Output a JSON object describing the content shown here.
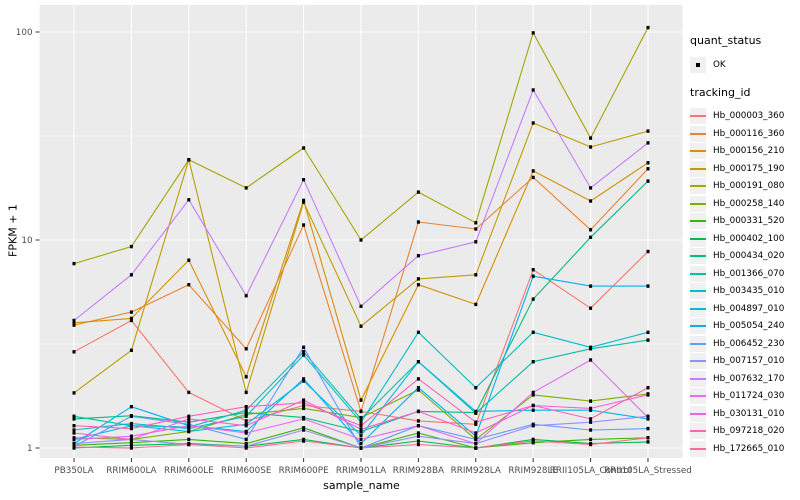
{
  "figure": {
    "background": "#FFFFFF",
    "panel_background": "#EBEBEB",
    "grid_color": "#FFFFFF",
    "axis_text_color": "#4D4D4D",
    "tick_color": "#333333",
    "point_color": "#000000",
    "legend_key_background": "#F0F0F0"
  },
  "axes": {
    "x": {
      "title": "sample_name"
    },
    "y": {
      "title": "FPKM + 1"
    }
  },
  "legend": {
    "quant_status": {
      "title": "quant_status",
      "items": [
        {
          "label": "OK",
          "marker": "black-square-point"
        }
      ]
    },
    "tracking_id": {
      "title": "tracking_id"
    }
  },
  "chart_data": {
    "type": "line",
    "title": "",
    "xlabel": "sample_name",
    "ylabel": "FPKM + 1",
    "y_scale": "log10",
    "ylim": [
      0.9,
      135
    ],
    "y_major_breaks": [
      1,
      10,
      100
    ],
    "y_tick_labels": [
      "1",
      "10",
      "100"
    ],
    "y_minor_breaks": [
      3.162,
      31.623
    ],
    "grid": true,
    "legend_position": "right",
    "marker": "small-black-square",
    "categories": [
      "PB350LA",
      "RRIM600LA",
      "RRIM600LE",
      "RRIM600SE",
      "RRIM600PE",
      "RRIM901LA",
      "RRIM928BA",
      "RRIM928LA",
      "RRIM928LE",
      "RRII105LA_Control",
      "RRII105LA_Stressed"
    ],
    "series": [
      {
        "name": "Hb_000003_360",
        "color": "#F8766D",
        "values": [
          2.9,
          4.1,
          1.85,
          1.35,
          1.6,
          1.5,
          1.35,
          1.3,
          7.2,
          4.7,
          8.8
        ]
      },
      {
        "name": "Hb_000116_360",
        "color": "#EA8331",
        "values": [
          3.9,
          4.5,
          6.1,
          3.0,
          11.8,
          1.5,
          12.2,
          11.3,
          20.0,
          11.2,
          22.0
        ]
      },
      {
        "name": "Hb_000156_210",
        "color": "#D89000",
        "values": [
          4.0,
          4.2,
          8.0,
          2.2,
          15.5,
          1.7,
          6.1,
          4.9,
          21.5,
          15.4,
          23.5
        ]
      },
      {
        "name": "Hb_000175_190",
        "color": "#C09B00",
        "values": [
          1.84,
          2.95,
          24.3,
          1.85,
          15.2,
          3.85,
          6.5,
          6.8,
          36.5,
          28.0,
          33.4
        ]
      },
      {
        "name": "Hb_000191_080",
        "color": "#A3A500",
        "values": [
          7.7,
          9.3,
          24.3,
          17.8,
          27.7,
          10.0,
          17.0,
          12.1,
          99.0,
          30.9,
          105.0
        ]
      },
      {
        "name": "Hb_000258_140",
        "color": "#7CAE00",
        "values": [
          1.12,
          1.1,
          1.2,
          1.45,
          1.55,
          1.4,
          1.9,
          1.1,
          1.8,
          1.68,
          1.82
        ]
      },
      {
        "name": "Hb_000331_520",
        "color": "#39B600",
        "values": [
          1.03,
          1.06,
          1.1,
          1.05,
          1.25,
          1.0,
          1.18,
          1.0,
          1.06,
          1.1,
          1.12
        ]
      },
      {
        "name": "Hb_000402_100",
        "color": "#00BB4E",
        "values": [
          1.0,
          1.03,
          1.05,
          1.02,
          1.1,
          1.0,
          1.08,
          1.0,
          1.1,
          1.05,
          1.07
        ]
      },
      {
        "name": "Hb_000434_020",
        "color": "#00BF7D",
        "values": [
          1.38,
          1.43,
          1.33,
          1.48,
          1.4,
          1.2,
          1.5,
          1.48,
          5.2,
          10.3,
          19.2
        ]
      },
      {
        "name": "Hb_001366_070",
        "color": "#00C1AB",
        "values": [
          1.42,
          1.28,
          1.26,
          1.52,
          2.9,
          1.38,
          2.6,
          1.47,
          2.6,
          3.0,
          3.3
        ]
      },
      {
        "name": "Hb_003435_010",
        "color": "#00BFC4",
        "values": [
          1.22,
          1.31,
          1.24,
          1.42,
          2.8,
          1.33,
          3.6,
          1.95,
          3.6,
          3.05,
          3.6
        ]
      },
      {
        "name": "Hb_004897_010",
        "color": "#00B9E3",
        "values": [
          1.1,
          1.28,
          1.2,
          1.3,
          2.1,
          1.15,
          2.6,
          1.5,
          1.52,
          1.52,
          1.38
        ]
      },
      {
        "name": "Hb_005054_240",
        "color": "#00B0F6",
        "values": [
          1.05,
          1.58,
          1.28,
          1.2,
          2.15,
          1.05,
          1.95,
          1.14,
          6.7,
          6.0,
          6.0
        ]
      },
      {
        "name": "Hb_006452_230",
        "color": "#619CFF",
        "values": [
          1.02,
          1.42,
          1.3,
          1.1,
          3.05,
          1.0,
          1.28,
          1.1,
          1.3,
          1.22,
          1.24
        ]
      },
      {
        "name": "Hb_007157_010",
        "color": "#9590FF",
        "values": [
          1.05,
          1.1,
          1.04,
          1.02,
          1.22,
          1.0,
          1.14,
          1.05,
          1.28,
          1.33,
          1.42
        ]
      },
      {
        "name": "Hb_007632_170",
        "color": "#C77CFF",
        "values": [
          4.1,
          6.8,
          15.6,
          5.4,
          19.5,
          4.8,
          8.4,
          9.8,
          52.6,
          17.8,
          29.3
        ]
      },
      {
        "name": "Hb_011724_030",
        "color": "#E76BF3",
        "values": [
          1.1,
          1.14,
          1.28,
          1.18,
          1.38,
          1.1,
          1.28,
          1.05,
          1.85,
          2.65,
          1.4
        ]
      },
      {
        "name": "Hb_030131_010",
        "color": "#FB61D7",
        "values": [
          1.18,
          1.1,
          1.38,
          1.28,
          1.7,
          1.23,
          1.5,
          1.18,
          1.6,
          1.55,
          1.8
        ]
      },
      {
        "name": "Hb_097218_020",
        "color": "#FF62BC",
        "values": [
          1.28,
          1.24,
          1.42,
          1.58,
          1.65,
          1.28,
          2.15,
          1.33,
          1.6,
          1.38,
          1.95
        ]
      },
      {
        "name": "Hb_172665_010",
        "color": "#FF6B94",
        "values": [
          1.01,
          1.0,
          1.04,
          1.0,
          1.08,
          1.0,
          1.04,
          1.0,
          1.08,
          1.04,
          1.12
        ]
      }
    ]
  }
}
